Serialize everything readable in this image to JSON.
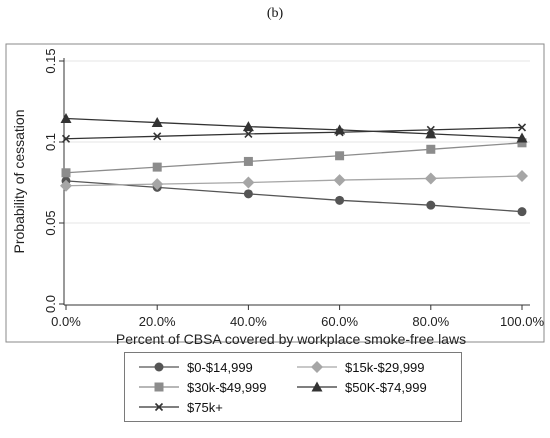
{
  "panel_label": "(b)",
  "chart_data": {
    "type": "line",
    "title": "",
    "xlabel": "Percent of CBSA covered by workplace smoke-free laws",
    "ylabel": "Probability of cessation",
    "x": [
      0,
      20,
      40,
      60,
      80,
      100
    ],
    "x_tick_labels": [
      "0.0%",
      "20.0%",
      "40.0%",
      "60.0%",
      "80.0%",
      "100.0%"
    ],
    "y_ticks": [
      0,
      0.05,
      0.1,
      0.15
    ],
    "y_tick_labels": [
      "0.0",
      "0.05",
      "0.1",
      "0.15"
    ],
    "xlim": [
      0,
      100
    ],
    "ylim": [
      0,
      0.15
    ],
    "grid": "horizontal",
    "legend_position": "bottom",
    "series": [
      {
        "name": "$0-$14,999",
        "marker": "circle",
        "color": "#555555",
        "values": [
          0.076,
          0.072,
          0.068,
          0.064,
          0.061,
          0.057
        ]
      },
      {
        "name": "$15k-$29,999",
        "marker": "diamond",
        "color": "#a6a6a6",
        "values": [
          0.073,
          0.074,
          0.075,
          0.0765,
          0.0775,
          0.079
        ]
      },
      {
        "name": "$30k-$49,999",
        "marker": "square",
        "color": "#8c8c8c",
        "values": [
          0.081,
          0.0845,
          0.088,
          0.0915,
          0.0955,
          0.0995
        ]
      },
      {
        "name": "$50K-$74,999",
        "marker": "triangle",
        "color": "#333333",
        "values": [
          0.1145,
          0.112,
          0.1095,
          0.1075,
          0.105,
          0.1025
        ]
      },
      {
        "name": "$75k+",
        "marker": "x",
        "color": "#333333",
        "values": [
          0.102,
          0.1035,
          0.105,
          0.106,
          0.1075,
          0.109
        ]
      }
    ]
  }
}
